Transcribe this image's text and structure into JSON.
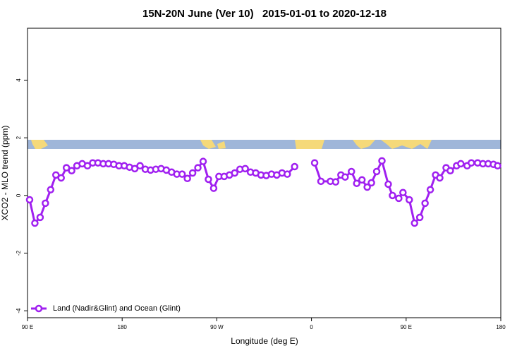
{
  "chart_data": {
    "type": "line",
    "title": "15N-20N June (Ver 10)   2015-01-01 to 2020-12-18",
    "x_label": "Longitude (deg E)",
    "y_label": "XCO2 - MLO trend (ppm)",
    "xlim": [
      90,
      540
    ],
    "ylim": [
      -4.24,
      5.8
    ],
    "xticks": [
      {
        "value": 90,
        "label": "90 E"
      },
      180,
      {
        "value": 270,
        "label": "90 W"
      },
      {
        "value": 360,
        "label": "0"
      },
      {
        "value": 450,
        "label": "90 E"
      },
      {
        "value": 540,
        "label": "180"
      }
    ],
    "yticks": [
      -4,
      -2,
      0,
      2,
      4
    ],
    "legend": "bottom left",
    "x": [
      92,
      97,
      102,
      107,
      112,
      117,
      122,
      127,
      132,
      137,
      142,
      147,
      152,
      157,
      162,
      167,
      172,
      177,
      182,
      187,
      192,
      197,
      202,
      207,
      212,
      217,
      222,
      227,
      232,
      237,
      242,
      247,
      252,
      257,
      262,
      267,
      272,
      277,
      282,
      287,
      292,
      297,
      302,
      307,
      312,
      317,
      322,
      327,
      332,
      337,
      344,
      353,
      363,
      369,
      378,
      383,
      388,
      392,
      398,
      403,
      408,
      413,
      417,
      422,
      427,
      433,
      437,
      443,
      447,
      453,
      458,
      463,
      468,
      473,
      478,
      482,
      488,
      492,
      498,
      502,
      508,
      512,
      518,
      523,
      528,
      533,
      537
    ],
    "series": [
      {
        "name": "Land (Nadir&Glint) and Ocean (Glint)",
        "color": "#a020f0",
        "values": [
          -0.15,
          -0.96,
          -0.76,
          -0.27,
          0.2,
          0.71,
          0.61,
          0.96,
          0.86,
          1.03,
          1.1,
          1.03,
          1.13,
          1.13,
          1.1,
          1.1,
          1.08,
          1.03,
          1.03,
          0.98,
          0.93,
          1.03,
          0.91,
          0.88,
          0.91,
          0.93,
          0.88,
          0.81,
          0.74,
          0.74,
          0.59,
          0.78,
          0.96,
          1.18,
          0.56,
          0.25,
          0.66,
          0.66,
          0.71,
          0.78,
          0.91,
          0.93,
          0.81,
          0.78,
          0.71,
          0.69,
          0.74,
          0.71,
          0.78,
          0.74,
          1.0,
          null,
          1.13,
          0.49,
          0.49,
          0.47,
          0.71,
          0.64,
          0.83,
          0.42,
          0.54,
          0.29,
          0.44,
          0.83,
          1.2,
          0.39,
          0,
          -0.1,
          0.1,
          -0.15,
          -0.96,
          -0.76,
          -0.27,
          0.2,
          0.71,
          0.61,
          0.96,
          0.86,
          1.03,
          1.1,
          1.03,
          1.13,
          1.13,
          1.1,
          1.1,
          1.08,
          1.03
        ]
      }
    ]
  }
}
